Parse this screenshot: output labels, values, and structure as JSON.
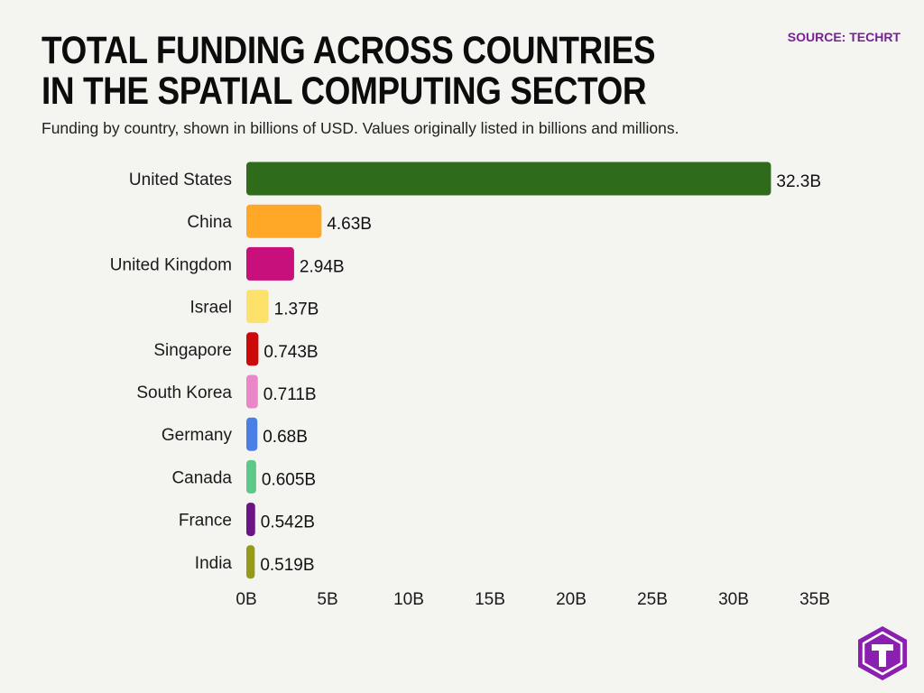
{
  "header": {
    "title": "TOTAL FUNDING ACROSS COUNTRIES IN THE SPATIAL COMPUTING SECTOR",
    "subtitle": "Funding by country, shown in billions of USD. Values originally listed in billions and millions.",
    "source": "SOURCE: TECHRT"
  },
  "logo": {
    "letter": "T",
    "color": "#8a1fb0",
    "icon": "techrt-logo-icon"
  },
  "chart_data": {
    "type": "bar",
    "orientation": "horizontal",
    "categories": [
      "United States",
      "China",
      "United Kingdom",
      "Israel",
      "Singapore",
      "South Korea",
      "Germany",
      "Canada",
      "France",
      "India"
    ],
    "values": [
      32.3,
      4.63,
      2.94,
      1.37,
      0.743,
      0.711,
      0.68,
      0.605,
      0.542,
      0.519
    ],
    "value_labels": [
      "32.3B",
      "4.63B",
      "2.94B",
      "1.37B",
      "0.743B",
      "0.711B",
      "0.68B",
      "0.605B",
      "0.542B",
      "0.519B"
    ],
    "colors": [
      "#2e6b1a",
      "#ffa726",
      "#c8107d",
      "#fce26b",
      "#cc0a0a",
      "#e987c9",
      "#4a7fe6",
      "#5ec88a",
      "#6a1487",
      "#979a17"
    ],
    "xlim": [
      0,
      35
    ],
    "x_ticks": [
      0,
      5,
      10,
      15,
      20,
      25,
      30,
      35
    ],
    "x_tick_labels": [
      "0B",
      "5B",
      "10B",
      "15B",
      "20B",
      "25B",
      "30B",
      "35B"
    ],
    "grid": false,
    "legend": "none"
  }
}
